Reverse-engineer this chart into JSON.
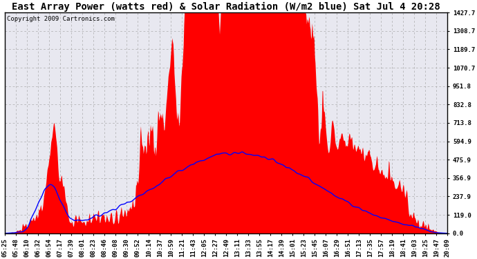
{
  "title": "East Array Power (watts red) & Solar Radiation (W/m2 blue) Sat Jul 4 20:28",
  "copyright": "Copyright 2009 Cartronics.com",
  "y_ticks": [
    0.0,
    119.0,
    237.9,
    356.9,
    475.9,
    594.9,
    713.8,
    832.8,
    951.8,
    1070.7,
    1189.7,
    1308.7,
    1427.7
  ],
  "y_min": 0.0,
  "y_max": 1427.7,
  "x_labels": [
    "05:25",
    "05:48",
    "06:10",
    "06:32",
    "06:54",
    "07:17",
    "07:39",
    "08:01",
    "08:23",
    "08:46",
    "09:08",
    "09:30",
    "09:52",
    "10:14",
    "10:37",
    "10:59",
    "11:21",
    "11:43",
    "12:05",
    "12:27",
    "12:49",
    "13:11",
    "13:33",
    "13:55",
    "14:17",
    "14:39",
    "15:01",
    "15:23",
    "15:45",
    "16:07",
    "16:29",
    "16:51",
    "17:13",
    "17:35",
    "17:57",
    "18:19",
    "18:41",
    "19:03",
    "19:25",
    "19:47",
    "20:09"
  ],
  "bg_color": "#ffffff",
  "plot_bg_color": "#e8e8f0",
  "grid_color": "#aaaaaa",
  "red_color": "#ff0000",
  "blue_color": "#0000ff",
  "title_fontsize": 10,
  "tick_fontsize": 6.5,
  "copyright_fontsize": 6.5
}
